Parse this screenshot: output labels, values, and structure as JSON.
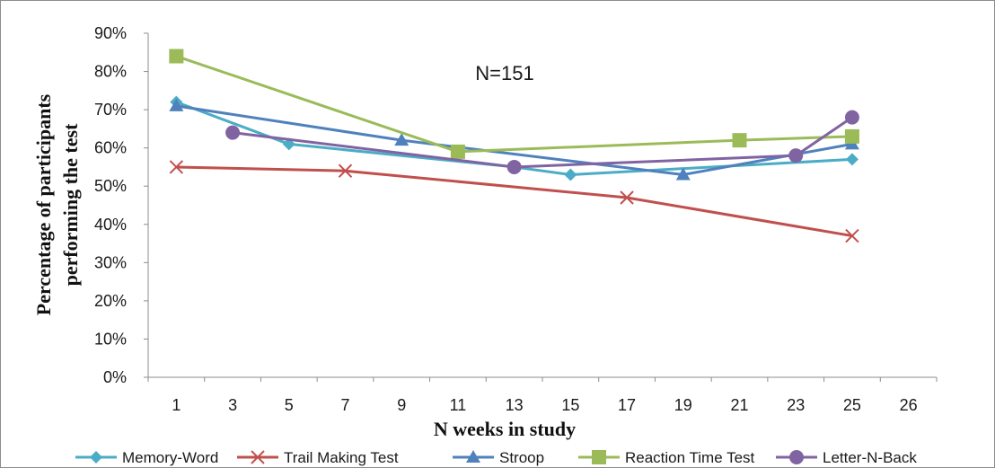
{
  "chart_data": {
    "type": "line",
    "title": "",
    "annotation": "N=151",
    "xlabel": "N weeks in study",
    "ylabel_lines": [
      "Percentage of participants",
      "performing the test"
    ],
    "x_ticks": [
      "1",
      "3",
      "5",
      "7",
      "9",
      "11",
      "13",
      "15",
      "17",
      "19",
      "21",
      "23",
      "25",
      "26"
    ],
    "ylim": [
      0,
      90
    ],
    "y_ticks": [
      0,
      10,
      20,
      30,
      40,
      50,
      60,
      70,
      80,
      90
    ],
    "y_tick_labels": [
      "0%",
      "10%",
      "20%",
      "30%",
      "40%",
      "50%",
      "60%",
      "70%",
      "80%",
      "90%"
    ],
    "grid": false,
    "legend_position": "bottom",
    "series": [
      {
        "name": "Memory-Word",
        "color": "#4bacc6",
        "marker": "diamond",
        "points": [
          {
            "x": "1",
            "y": 72
          },
          {
            "x": "5",
            "y": 61
          },
          {
            "x": "13",
            "y": 55
          },
          {
            "x": "15",
            "y": 53
          },
          {
            "x": "25",
            "y": 57
          }
        ]
      },
      {
        "name": "Trail Making Test",
        "color": "#c0504d",
        "marker": "x",
        "points": [
          {
            "x": "1",
            "y": 55
          },
          {
            "x": "7",
            "y": 54
          },
          {
            "x": "17",
            "y": 47
          },
          {
            "x": "25",
            "y": 37
          }
        ]
      },
      {
        "name": "Stroop",
        "color": "#4f81bd",
        "marker": "triangle",
        "points": [
          {
            "x": "1",
            "y": 71
          },
          {
            "x": "9",
            "y": 62
          },
          {
            "x": "19",
            "y": 53
          },
          {
            "x": "25",
            "y": 61
          }
        ]
      },
      {
        "name": "Reaction Time Test",
        "color": "#9bbb59",
        "marker": "square",
        "points": [
          {
            "x": "1",
            "y": 84
          },
          {
            "x": "11",
            "y": 59
          },
          {
            "x": "21",
            "y": 62
          },
          {
            "x": "25",
            "y": 63
          }
        ]
      },
      {
        "name": "Letter-N-Back",
        "color": "#8064a2",
        "marker": "circle",
        "points": [
          {
            "x": "3",
            "y": 64
          },
          {
            "x": "13",
            "y": 55
          },
          {
            "x": "23",
            "y": 58
          },
          {
            "x": "25",
            "y": 68
          }
        ]
      }
    ]
  }
}
